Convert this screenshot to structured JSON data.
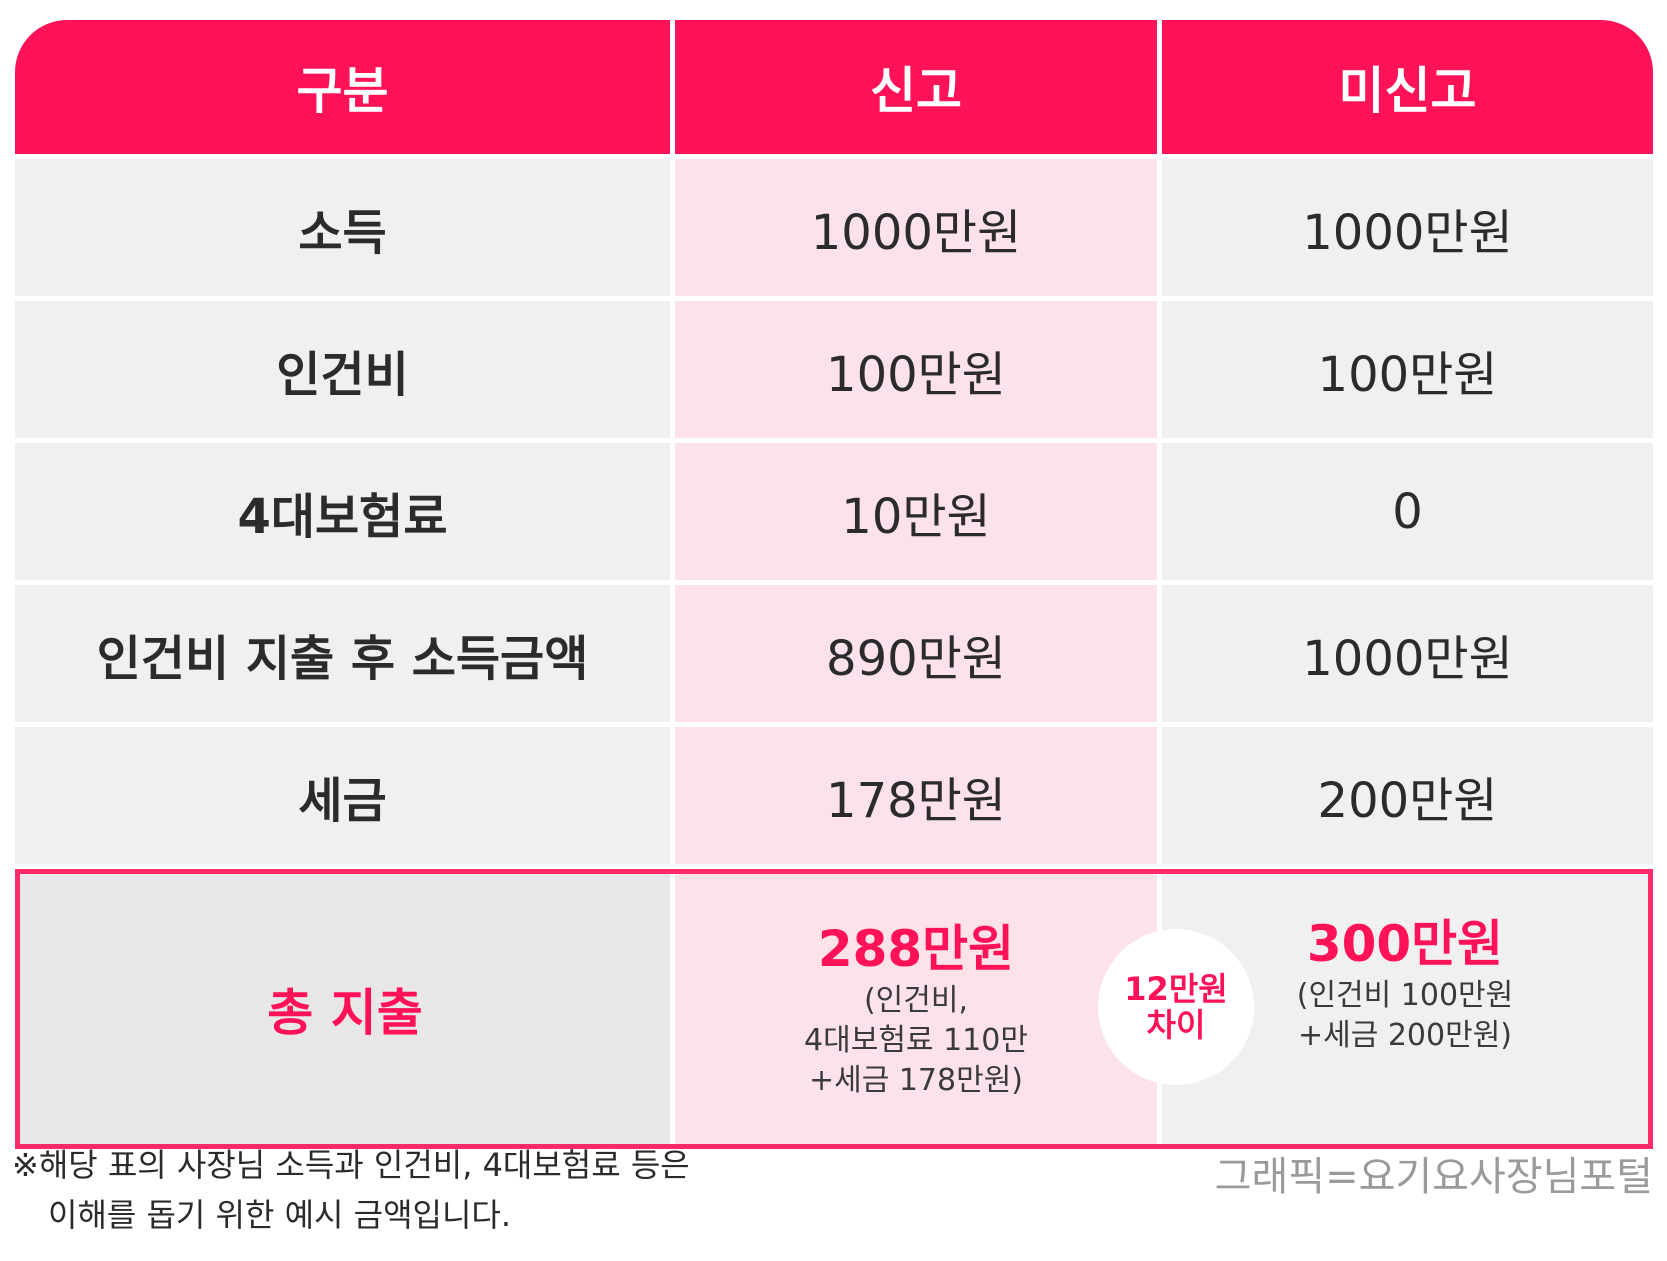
{
  "header": {
    "col1": "구분",
    "col2": "신고",
    "col3": "미신고"
  },
  "rows": [
    {
      "label": "소득",
      "reported": "1000만원",
      "unreported": "1000만원"
    },
    {
      "label": "인건비",
      "reported": "100만원",
      "unreported": "100만원"
    },
    {
      "label": "4대보험료",
      "reported": "10만원",
      "unreported": "0"
    },
    {
      "label": "인건비 지출 후 소득금액",
      "reported": "890만원",
      "unreported": "1000만원"
    },
    {
      "label": "세금",
      "reported": "178만원",
      "unreported": "200만원"
    }
  ],
  "total": {
    "label": "총 지출",
    "reported_amount": "288만원",
    "reported_note": [
      "(인건비,",
      "4대보험료 110만",
      "+세금 178만원)"
    ],
    "unreported_amount": "300만원",
    "unreported_note": [
      "(인건비 100만원",
      "+세금 200만원)"
    ],
    "difference": [
      "12만원",
      "차이"
    ]
  },
  "footnote": [
    "※해당 표의 사장님 소득과 인건비, 4대보험료 등은",
    "이해를 돕기 위한 예시 금액입니다."
  ],
  "credit": "그래픽=요기요사장님포털",
  "colors": {
    "accent": "#ff1258",
    "pink_bg": "#fde2ea",
    "gray_bg": "#f0f0f0"
  }
}
